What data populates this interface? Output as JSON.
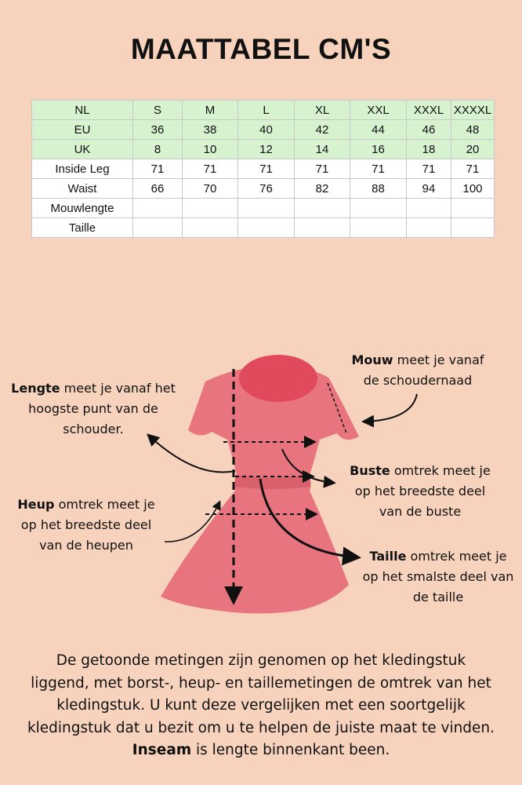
{
  "header": {
    "title": "MAATTABEL CM'S"
  },
  "table": {
    "rows": [
      [
        "NL",
        "S",
        "M",
        "L",
        "XL",
        "XXL",
        "XXXL",
        "XXXXL"
      ],
      [
        "EU",
        36,
        38,
        40,
        42,
        44,
        46,
        48
      ],
      [
        "UK",
        8,
        10,
        12,
        14,
        16,
        18,
        20
      ],
      [
        "Inside Leg",
        71,
        71,
        71,
        71,
        71,
        71,
        71
      ],
      [
        "Waist",
        66,
        70,
        76,
        82,
        88,
        94,
        100
      ],
      [
        "Mouwlengte"
      ],
      [
        "Taille"
      ]
    ],
    "highlighted_rows": 3
  },
  "annotations": [
    {
      "bold": "Lengte",
      "text": " meet je vanaf het hoogste punt van de schouder."
    },
    {
      "bold": "Mouw",
      "text": " meet je vanaf de schoudernaad"
    },
    {
      "bold": "Buste",
      "text": " omtrek meet je op het breedste deel van de buste"
    },
    {
      "bold": "Heup",
      "text": " omtrek meet je op het breedste deel van de heupen"
    },
    {
      "bold": "Taille",
      "text": " omtrek meet je op het smalste deel van de taille"
    }
  ],
  "footer": {
    "before": "De getoonde metingen zijn genomen op het kledingstuk liggend, met borst-, heup- en taillemetingen de omtrek van het kledingstuk. U kunt deze vergelijken met een soortgelijk kledingstuk dat u bezit om u te helpen de juiste maat te vinden. ",
    "bold": "Inseam",
    "after": " is lengte binnenkant been."
  }
}
